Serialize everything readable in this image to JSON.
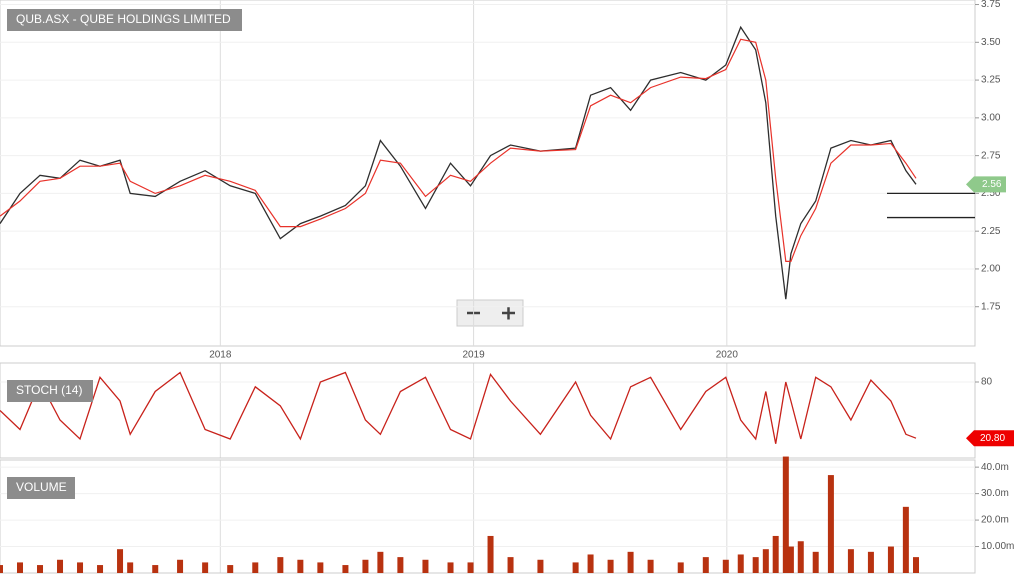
{
  "chart_data": [
    {
      "type": "line",
      "title": "QUB.ASX - QUBE HOLDINGS LIMITED",
      "x": [
        2017.13,
        2017.209,
        2017.288,
        2017.367,
        2017.446,
        2017.525,
        2017.604,
        2017.644,
        2017.743,
        2017.841,
        2017.94,
        2018.039,
        2018.138,
        2018.237,
        2018.316,
        2018.395,
        2018.494,
        2018.573,
        2018.632,
        2018.711,
        2018.81,
        2018.909,
        2018.988,
        2019.067,
        2019.146,
        2019.264,
        2019.403,
        2019.462,
        2019.541,
        2019.62,
        2019.699,
        2019.818,
        2019.917,
        2019.996,
        2020.055,
        2020.114,
        2020.154,
        2020.193,
        2020.233,
        2020.253,
        2020.292,
        2020.351,
        2020.411,
        2020.49,
        2020.569,
        2020.648,
        2020.707,
        2020.747
      ],
      "series": [
        {
          "color": "#2e2e2e",
          "values": [
            2.3,
            2.5,
            2.62,
            2.6,
            2.72,
            2.68,
            2.72,
            2.5,
            2.48,
            2.58,
            2.65,
            2.55,
            2.5,
            2.2,
            2.3,
            2.35,
            2.42,
            2.55,
            2.85,
            2.68,
            2.4,
            2.7,
            2.55,
            2.75,
            2.82,
            2.78,
            2.8,
            3.15,
            3.2,
            3.05,
            3.25,
            3.3,
            3.25,
            3.35,
            3.6,
            3.45,
            3.1,
            2.35,
            1.8,
            2.1,
            2.3,
            2.45,
            2.8,
            2.85,
            2.82,
            2.85,
            2.65,
            2.56
          ]
        },
        {
          "color": "#e8322a",
          "values": [
            2.35,
            2.45,
            2.58,
            2.6,
            2.68,
            2.68,
            2.7,
            2.58,
            2.5,
            2.55,
            2.62,
            2.58,
            2.52,
            2.28,
            2.28,
            2.33,
            2.4,
            2.5,
            2.72,
            2.7,
            2.48,
            2.62,
            2.58,
            2.7,
            2.8,
            2.78,
            2.79,
            3.08,
            3.15,
            3.1,
            3.2,
            3.27,
            3.26,
            3.32,
            3.52,
            3.5,
            3.25,
            2.6,
            2.05,
            2.05,
            2.22,
            2.4,
            2.7,
            2.82,
            2.82,
            2.83,
            2.7,
            2.6
          ]
        }
      ],
      "levels": [
        2.5,
        2.34
      ],
      "xlim": [
        2017.13,
        2020.98
      ],
      "xticks": [
        2018,
        2019,
        2020
      ],
      "ylim": [
        1.49,
        3.78
      ],
      "yticks": [
        {
          "value": 1.75,
          "label": "1.75"
        },
        {
          "value": 2,
          "label": "2.00"
        },
        {
          "value": 2.25,
          "label": "2.25"
        },
        {
          "value": 2.5,
          "label": "2.50"
        },
        {
          "value": 2.75,
          "label": "2.75"
        },
        {
          "value": 3,
          "label": "3.00"
        },
        {
          "value": 3.25,
          "label": "3.25"
        },
        {
          "value": 3.5,
          "label": "3.50"
        },
        {
          "value": 3.75,
          "label": "3.75"
        }
      ],
      "grid": true
    },
    {
      "type": "line",
      "title": "STOCH (14)",
      "x": [
        2017.13,
        2017.209,
        2017.288,
        2017.367,
        2017.446,
        2017.525,
        2017.604,
        2017.644,
        2017.743,
        2017.841,
        2017.94,
        2018.039,
        2018.138,
        2018.237,
        2018.316,
        2018.395,
        2018.494,
        2018.573,
        2018.632,
        2018.711,
        2018.81,
        2018.909,
        2018.988,
        2019.067,
        2019.146,
        2019.264,
        2019.403,
        2019.462,
        2019.541,
        2019.62,
        2019.699,
        2019.818,
        2019.917,
        2019.996,
        2020.055,
        2020.114,
        2020.154,
        2020.193,
        2020.233,
        2020.253,
        2020.292,
        2020.351,
        2020.411,
        2020.49,
        2020.569,
        2020.648,
        2020.707,
        2020.747
      ],
      "series": [
        {
          "color": "#c8221b",
          "values": [
            50,
            30,
            80,
            40,
            20,
            85,
            60,
            25,
            70,
            90,
            30,
            20,
            75,
            55,
            20,
            80,
            90,
            40,
            25,
            70,
            85,
            30,
            20,
            88,
            60,
            25,
            80,
            45,
            20,
            75,
            85,
            30,
            70,
            85,
            40,
            20,
            70,
            15,
            80,
            60,
            20,
            85,
            75,
            40,
            82,
            60,
            25,
            20.8
          ]
        }
      ],
      "current": {
        "value": 20.8,
        "label": "20.80"
      },
      "xlim": [
        2017.13,
        2020.98
      ],
      "ylim": [
        0,
        100
      ],
      "yticks": [
        80
      ],
      "grid": true
    },
    {
      "type": "bar",
      "title": "VOLUME",
      "x": [
        2017.13,
        2017.209,
        2017.288,
        2017.367,
        2017.446,
        2017.525,
        2017.604,
        2017.644,
        2017.743,
        2017.841,
        2017.94,
        2018.039,
        2018.138,
        2018.237,
        2018.316,
        2018.395,
        2018.494,
        2018.573,
        2018.632,
        2018.711,
        2018.81,
        2018.909,
        2018.988,
        2019.067,
        2019.146,
        2019.264,
        2019.403,
        2019.462,
        2019.541,
        2019.62,
        2019.699,
        2019.818,
        2019.917,
        2019.996,
        2020.055,
        2020.114,
        2020.154,
        2020.193,
        2020.233,
        2020.253,
        2020.292,
        2020.351,
        2020.411,
        2020.49,
        2020.569,
        2020.648,
        2020.707,
        2020.747
      ],
      "color": "#b83210",
      "values": [
        3,
        4,
        3,
        5,
        4,
        3,
        9,
        4,
        3,
        5,
        4,
        3,
        4,
        6,
        5,
        4,
        3,
        5,
        8,
        6,
        5,
        4,
        4,
        14,
        6,
        5,
        4,
        7,
        5,
        8,
        5,
        4,
        6,
        5,
        7,
        6,
        9,
        14,
        44,
        10,
        12,
        8,
        37,
        9,
        8,
        10,
        25,
        6
      ],
      "xlim": [
        2017.13,
        2020.98
      ],
      "ylim": [
        0,
        42.7
      ],
      "yticks": [
        {
          "value": 10,
          "label": "10.00m"
        },
        {
          "value": 20,
          "label": "20.0m"
        },
        {
          "value": 30,
          "label": "30.0m"
        },
        {
          "value": 40,
          "label": "40.0m"
        }
      ],
      "grid": true
    }
  ]
}
